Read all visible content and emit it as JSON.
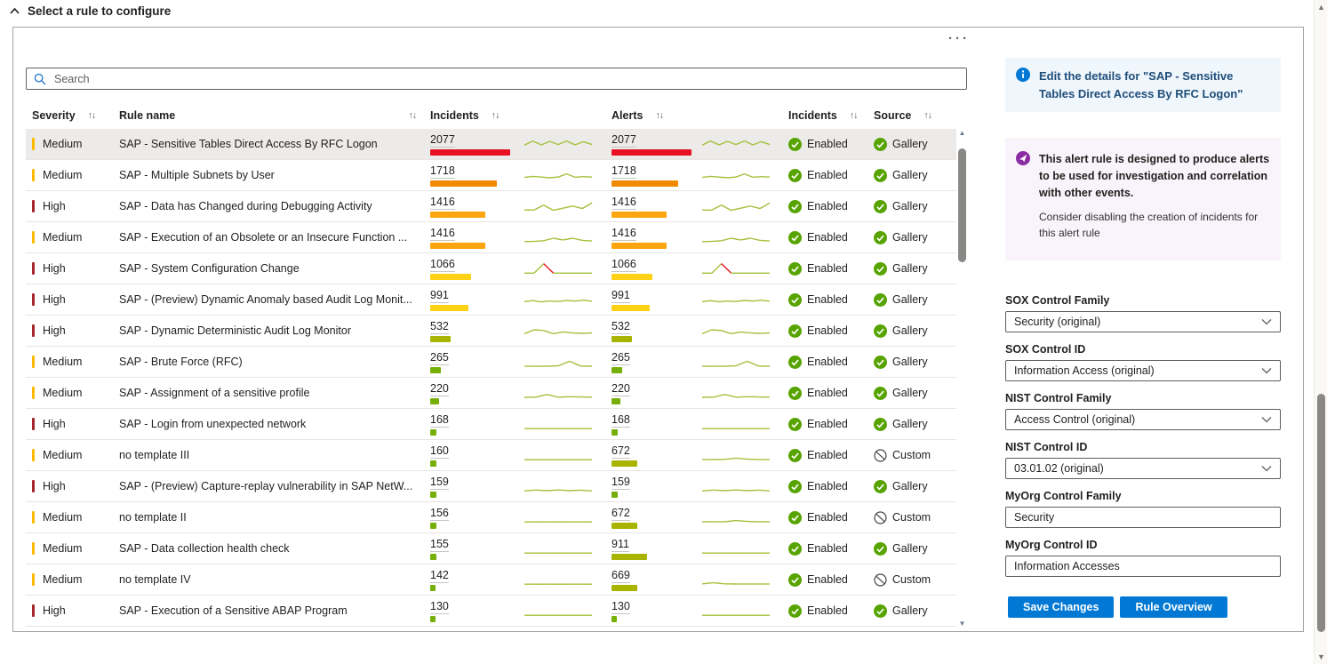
{
  "page": {
    "title": "Select a rule to configure"
  },
  "toolbar": {
    "ellipsis": "···"
  },
  "search": {
    "placeholder": "Search"
  },
  "table": {
    "headers": {
      "severity": "Severity",
      "rule_name": "Rule name",
      "incidents": "Incidents",
      "alerts": "Alerts",
      "incidents2": "Incidents",
      "source": "Source",
      "sort_icon": "↑↓"
    },
    "rows": [
      {
        "severity": "Medium",
        "severity_color": "severity_medium",
        "name": "SAP - Sensitive Tables Direct Access By RFC Logon",
        "incidents": 2077,
        "incidents_color": "bar_red",
        "alerts": 2077,
        "alerts_color": "bar_red",
        "status": "Enabled",
        "source": "Gallery",
        "selected": true,
        "spark_incidents": [
          0.4,
          0.78,
          0.42,
          0.75,
          0.45,
          0.78,
          0.42,
          0.72,
          0.45
        ],
        "spark_alerts": [
          0.4,
          0.78,
          0.42,
          0.75,
          0.45,
          0.78,
          0.42,
          0.72,
          0.45
        ],
        "spark_red": null
      },
      {
        "severity": "Medium",
        "severity_color": "severity_medium",
        "name": "SAP - Multiple Subnets by User",
        "incidents": 1718,
        "incidents_color": "bar_orange",
        "alerts": 1718,
        "alerts_color": "bar_orange",
        "status": "Enabled",
        "source": "Gallery",
        "selected": false,
        "spark_incidents": [
          0.28,
          0.38,
          0.32,
          0.25,
          0.32,
          0.62,
          0.3,
          0.36,
          0.32
        ],
        "spark_alerts": [
          0.28,
          0.38,
          0.32,
          0.25,
          0.32,
          0.62,
          0.3,
          0.36,
          0.32
        ],
        "spark_red": null
      },
      {
        "severity": "High",
        "severity_color": "severity_high",
        "name": "SAP - Data has Changed during Debugging Activity",
        "incidents": 1416,
        "incidents_color": "bar_amber",
        "alerts": 1416,
        "alerts_color": "bar_amber",
        "status": "Enabled",
        "source": "Gallery",
        "selected": false,
        "spark_incidents": [
          0.14,
          0.14,
          0.6,
          0.12,
          0.32,
          0.52,
          0.28,
          0.8
        ],
        "spark_alerts": [
          0.14,
          0.14,
          0.6,
          0.12,
          0.32,
          0.52,
          0.28,
          0.8
        ],
        "spark_red": null
      },
      {
        "severity": "Medium",
        "severity_color": "severity_medium",
        "name": "SAP - Execution of an Obsolete or an Insecure Function ...",
        "incidents": 1416,
        "incidents_color": "bar_amber",
        "alerts": 1416,
        "alerts_color": "bar_amber",
        "status": "Enabled",
        "source": "Gallery",
        "selected": false,
        "spark_incidents": [
          0.1,
          0.12,
          0.18,
          0.42,
          0.26,
          0.42,
          0.22,
          0.16
        ],
        "spark_alerts": [
          0.1,
          0.12,
          0.18,
          0.42,
          0.26,
          0.42,
          0.22,
          0.16
        ],
        "spark_red": null
      },
      {
        "severity": "High",
        "severity_color": "severity_high",
        "name": "SAP - System Configuration Change",
        "incidents": 1066,
        "incidents_color": "bar_yellow",
        "alerts": 1066,
        "alerts_color": "bar_yellow",
        "status": "Enabled",
        "source": "Gallery",
        "selected": false,
        "spark_incidents": [
          0.06,
          0.06,
          0.95,
          0.06,
          0.06,
          0.06,
          0.06,
          0.06
        ],
        "spark_alerts": [
          0.06,
          0.06,
          0.95,
          0.06,
          0.06,
          0.06,
          0.06,
          0.06
        ],
        "spark_red": [
          2,
          3
        ]
      },
      {
        "severity": "High",
        "severity_color": "severity_high",
        "name": "SAP - (Preview) Dynamic Anomaly based Audit Log Monit...",
        "incidents": 991,
        "incidents_color": "bar_yellow",
        "alerts": 991,
        "alerts_color": "bar_yellow",
        "status": "Enabled",
        "source": "Gallery",
        "selected": false,
        "spark_incidents": [
          0.3,
          0.4,
          0.28,
          0.36,
          0.32,
          0.42,
          0.36,
          0.44,
          0.34
        ],
        "spark_alerts": [
          0.3,
          0.4,
          0.28,
          0.36,
          0.32,
          0.42,
          0.36,
          0.44,
          0.34
        ],
        "spark_red": null
      },
      {
        "severity": "High",
        "severity_color": "severity_high",
        "name": "SAP - Dynamic Deterministic Audit Log Monitor",
        "incidents": 532,
        "incidents_color": "bar_olive",
        "alerts": 532,
        "alerts_color": "bar_olive",
        "status": "Enabled",
        "source": "Gallery",
        "selected": false,
        "spark_incidents": [
          0.22,
          0.58,
          0.52,
          0.22,
          0.38,
          0.28,
          0.25,
          0.28
        ],
        "spark_alerts": [
          0.22,
          0.58,
          0.52,
          0.22,
          0.38,
          0.28,
          0.25,
          0.28
        ],
        "spark_red": null
      },
      {
        "severity": "Medium",
        "severity_color": "severity_medium",
        "name": "SAP - Brute Force (RFC)",
        "incidents": 265,
        "incidents_color": "bar_green",
        "alerts": 265,
        "alerts_color": "bar_green",
        "status": "Enabled",
        "source": "Gallery",
        "selected": false,
        "spark_incidents": [
          0.08,
          0.08,
          0.08,
          0.12,
          0.55,
          0.1,
          0.08
        ],
        "spark_alerts": [
          0.08,
          0.08,
          0.08,
          0.12,
          0.55,
          0.1,
          0.08
        ],
        "spark_red": null
      },
      {
        "severity": "Medium",
        "severity_color": "severity_medium",
        "name": "SAP - Assignment of a sensitive profile",
        "incidents": 220,
        "incidents_color": "bar_green",
        "alerts": 220,
        "alerts_color": "bar_green",
        "status": "Enabled",
        "source": "Gallery",
        "selected": false,
        "spark_incidents": [
          0.08,
          0.1,
          0.35,
          0.1,
          0.14,
          0.12,
          0.1
        ],
        "spark_alerts": [
          0.08,
          0.1,
          0.35,
          0.1,
          0.14,
          0.12,
          0.1
        ],
        "spark_red": null
      },
      {
        "severity": "High",
        "severity_color": "severity_high",
        "name": "SAP - Login from unexpected network",
        "incidents": 168,
        "incidents_color": "bar_green",
        "alerts": 168,
        "alerts_color": "bar_green",
        "status": "Enabled",
        "source": "Gallery",
        "selected": false,
        "spark_incidents": [
          0.07,
          0.07,
          0.07,
          0.07,
          0.07,
          0.07,
          0.07
        ],
        "spark_alerts": [
          0.07,
          0.07,
          0.07,
          0.07,
          0.07,
          0.07,
          0.07
        ],
        "spark_red": null
      },
      {
        "severity": "Medium",
        "severity_color": "severity_medium",
        "name": "no template III",
        "incidents": 160,
        "incidents_color": "bar_green",
        "alerts": 672,
        "alerts_color": "bar_olive",
        "status": "Enabled",
        "source": "Custom",
        "selected": false,
        "spark_incidents": [
          0.07,
          0.07,
          0.07,
          0.07,
          0.07,
          0.07,
          0.07
        ],
        "spark_alerts": [
          0.08,
          0.08,
          0.1,
          0.22,
          0.12,
          0.08,
          0.08
        ],
        "spark_red": null
      },
      {
        "severity": "High",
        "severity_color": "severity_high",
        "name": "SAP - (Preview) Capture-replay vulnerability in SAP NetW...",
        "incidents": 159,
        "incidents_color": "bar_green",
        "alerts": 159,
        "alerts_color": "bar_green",
        "status": "Enabled",
        "source": "Gallery",
        "selected": false,
        "spark_incidents": [
          0.06,
          0.14,
          0.08,
          0.15,
          0.08,
          0.13,
          0.07
        ],
        "spark_alerts": [
          0.06,
          0.14,
          0.08,
          0.15,
          0.08,
          0.13,
          0.07
        ],
        "spark_red": null
      },
      {
        "severity": "Medium",
        "severity_color": "severity_medium",
        "name": "no template II",
        "incidents": 156,
        "incidents_color": "bar_green",
        "alerts": 672,
        "alerts_color": "bar_olive",
        "status": "Enabled",
        "source": "Custom",
        "selected": false,
        "spark_incidents": [
          0.07,
          0.07,
          0.07,
          0.07,
          0.07,
          0.07,
          0.07
        ],
        "spark_alerts": [
          0.08,
          0.08,
          0.08,
          0.2,
          0.12,
          0.08,
          0.08
        ],
        "spark_red": null
      },
      {
        "severity": "Medium",
        "severity_color": "severity_medium",
        "name": "SAP - Data collection health check",
        "incidents": 155,
        "incidents_color": "bar_green",
        "alerts": 911,
        "alerts_color": "bar_olive",
        "status": "Enabled",
        "source": "Gallery",
        "selected": false,
        "spark_incidents": [
          0.07,
          0.07,
          0.07,
          0.07,
          0.07,
          0.07,
          0.07
        ],
        "spark_alerts": [
          0.07,
          0.07,
          0.07,
          0.07,
          0.07,
          0.07,
          0.07
        ],
        "spark_red": null
      },
      {
        "severity": "Medium",
        "severity_color": "severity_medium",
        "name": "no template IV",
        "incidents": 142,
        "incidents_color": "bar_green",
        "alerts": 669,
        "alerts_color": "bar_olive",
        "status": "Enabled",
        "source": "Custom",
        "selected": false,
        "spark_incidents": [
          0.07,
          0.07,
          0.07,
          0.07,
          0.07,
          0.07,
          0.07
        ],
        "spark_alerts": [
          0.1,
          0.2,
          0.1,
          0.08,
          0.08,
          0.08,
          0.08
        ],
        "spark_red": null
      },
      {
        "severity": "High",
        "severity_color": "severity_high",
        "name": "SAP - Execution of a Sensitive ABAP Program",
        "incidents": 130,
        "incidents_color": "bar_green",
        "alerts": 130,
        "alerts_color": "bar_green",
        "status": "Enabled",
        "source": "Gallery",
        "selected": false,
        "spark_incidents": [
          0.07,
          0.07,
          0.07,
          0.07,
          0.07,
          0.07,
          0.07
        ],
        "spark_alerts": [
          0.07,
          0.07,
          0.07,
          0.07,
          0.07,
          0.07,
          0.07
        ],
        "spark_red": null
      }
    ]
  },
  "panel": {
    "info": {
      "text": "Edit the details for \"SAP - Sensitive Tables Direct Access By RFC Logon\""
    },
    "tip": {
      "bold": "This alert rule is designed to produce alerts to be used for investigation and correlation with other events.",
      "normal": "Consider disabling the creation of incidents for this alert rule"
    },
    "fields": [
      {
        "label": "SOX Control Family",
        "value": "Security (original)",
        "type": "select"
      },
      {
        "label": "SOX Control ID",
        "value": "Information Access (original)",
        "type": "select"
      },
      {
        "label": "NIST Control Family",
        "value": "Access Control (original)",
        "type": "select"
      },
      {
        "label": "NIST Control ID",
        "value": "03.01.02 (original)",
        "type": "select"
      },
      {
        "label": "MyOrg Control Family",
        "value": "Security",
        "type": "text"
      },
      {
        "label": "MyOrg Control ID",
        "value": "Information Accesses",
        "type": "text"
      }
    ],
    "buttons": {
      "save": "Save Changes",
      "overview": "Rule Overview"
    }
  },
  "colors": {
    "severity_medium": "#FFB900",
    "severity_high": "#A4262C",
    "bar_red": "#E81123",
    "bar_orange": "#F08A00",
    "bar_amber": "#FCA50F",
    "bar_yellow": "#FCD116",
    "bar_olive": "#A8B400",
    "bar_green": "#76B007",
    "spark_green": "#A3C13B",
    "spark_red": "#E81123",
    "enabled_green": "#57A300",
    "custom_gray": "#484644",
    "accent_blue": "#0078D4",
    "info_bg": "#EFF6FC",
    "tip_bg": "#F9F3FB",
    "tip_purple": "#8A2DA5"
  }
}
